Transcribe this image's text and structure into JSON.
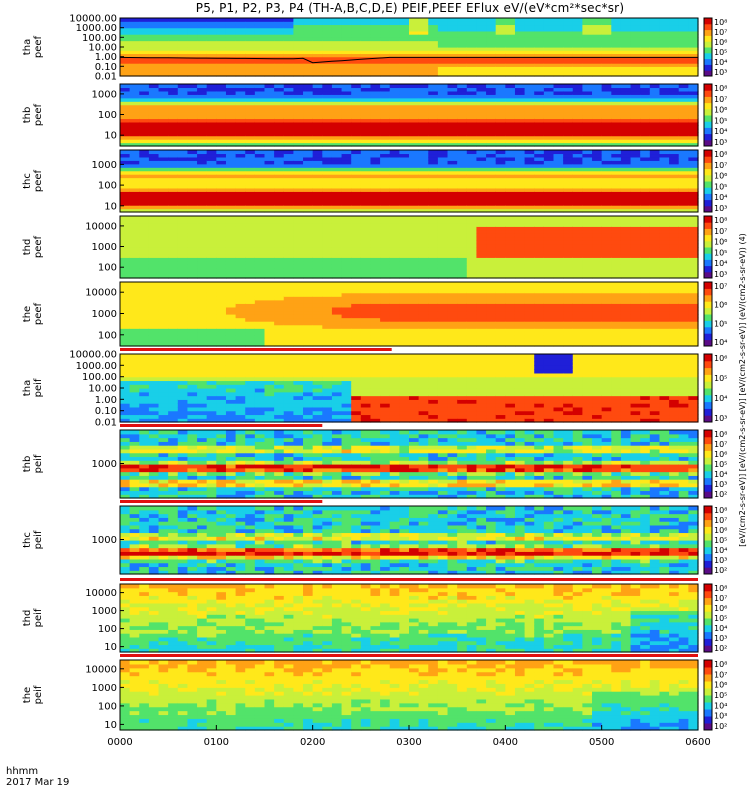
{
  "title": "P5, P1, P2, P3, P4 (TH-A,B,C,D,E) PEIF,PEEF EFlux eV/(eV*cm²*sec*sr)",
  "time_axis": {
    "label_line1": "hhmm",
    "label_line2": "2017 Mar 19",
    "ticks": [
      "0000",
      "0100",
      "0200",
      "0300",
      "0400",
      "0500",
      "0600"
    ],
    "start_hours": 0,
    "end_hours": 6
  },
  "colorbar_label": "[eV/(cm2-s-sr-eV)] [eV/(cm2-s-sr-eV)] [eV/(cm2-s-sr-eV)] (eV/(cm2-s-sr-eV)) (4)",
  "chart_data": {
    "type": "heatmap",
    "x_unit": "hhmm",
    "y_scale": "log",
    "panels": [
      {
        "probe": "tha",
        "species": "peef",
        "ylabel_probe": "tha",
        "ylabel_species": "peef",
        "ylim": [
          0.01,
          10000
        ],
        "yticks": [
          "10000.00",
          "1000.00",
          "100.00",
          "10.00",
          "1.00",
          "0.10",
          "0.01"
        ],
        "colorbar_ticks": [
          "10⁸",
          "10⁷",
          "10⁶",
          "10⁵",
          "10⁴",
          "10³"
        ],
        "spacecraft_potential_line": true
      },
      {
        "probe": "thb",
        "species": "peef",
        "ylabel_probe": "thb",
        "ylabel_species": "peef",
        "ylim": [
          3,
          3000
        ],
        "yticks": [
          "1000",
          "100",
          "10"
        ],
        "colorbar_ticks": [
          "10⁸",
          "10⁷",
          "10⁶",
          "10⁵",
          "10⁴",
          "10³"
        ]
      },
      {
        "probe": "thc",
        "species": "peef",
        "ylabel_probe": "thc",
        "ylabel_species": "peef",
        "ylim": [
          5,
          5000
        ],
        "yticks": [
          "1000",
          "100",
          "10"
        ],
        "colorbar_ticks": [
          "10⁸",
          "10⁷",
          "10⁶",
          "10⁵",
          "10⁴",
          "10³"
        ]
      },
      {
        "probe": "thd",
        "species": "peef",
        "ylabel_probe": "thd",
        "ylabel_species": "peef",
        "ylim": [
          30,
          30000
        ],
        "yticks": [
          "10000",
          "1000",
          "100"
        ],
        "colorbar_ticks": [
          "10⁸",
          "10⁷",
          "10⁶",
          "10⁵",
          "10⁴",
          "10³"
        ]
      },
      {
        "probe": "the",
        "species": "peef",
        "ylabel_probe": "the",
        "ylabel_species": "peef",
        "ylim": [
          30,
          30000
        ],
        "yticks": [
          "10000",
          "1000",
          "100"
        ],
        "colorbar_ticks": [
          "10⁷",
          "10⁶",
          "10⁵",
          "10⁴"
        ]
      },
      {
        "probe": "tha",
        "species": "peif",
        "ylabel_probe": "tha",
        "ylabel_species": "peif",
        "ylim": [
          0.01,
          10000
        ],
        "yticks": [
          "10000.00",
          "1000.00",
          "100.00",
          "10.00",
          "1.00",
          "0.10",
          "0.01"
        ],
        "colorbar_ticks": [
          "10⁶",
          "10⁵",
          "10⁴",
          "10³"
        ]
      },
      {
        "probe": "thb",
        "species": "peif",
        "ylabel_probe": "thb",
        "ylabel_species": "peif",
        "ylim": [
          30,
          30000
        ],
        "yticks": [
          "1000"
        ],
        "colorbar_ticks": [
          "10⁸",
          "10⁷",
          "10⁶",
          "10⁵",
          "10⁴",
          "10³",
          "10²"
        ]
      },
      {
        "probe": "thc",
        "species": "peif",
        "ylabel_probe": "thc",
        "ylabel_species": "peif",
        "ylim": [
          30,
          30000
        ],
        "yticks": [
          "1000"
        ],
        "colorbar_ticks": [
          "10⁸",
          "10⁷",
          "10⁶",
          "10⁵",
          "10⁴",
          "10³",
          "10²"
        ]
      },
      {
        "probe": "thd",
        "species": "peif",
        "ylabel_probe": "thd",
        "ylabel_species": "peif",
        "ylim": [
          5,
          30000
        ],
        "yticks": [
          "10000",
          "1000",
          "100",
          "10"
        ],
        "colorbar_ticks": [
          "10⁸",
          "10⁷",
          "10⁶",
          "10⁵",
          "10⁴",
          "10³",
          "10²"
        ]
      },
      {
        "probe": "the",
        "species": "peif",
        "ylabel_probe": "the",
        "ylabel_species": "peif",
        "ylim": [
          5,
          30000
        ],
        "yticks": [
          "10000",
          "1000",
          "100",
          "10"
        ],
        "colorbar_ticks": [
          "10⁸",
          "10⁷",
          "10⁶",
          "10⁵",
          "10⁴",
          "10³",
          "10²"
        ]
      }
    ],
    "colormap": [
      "#5a0b86",
      "#1f1fd8",
      "#1a78ff",
      "#19cfe8",
      "#52e36a",
      "#c9f03a",
      "#ffe81a",
      "#ffa215",
      "#ff4a0f",
      "#d40000"
    ]
  }
}
